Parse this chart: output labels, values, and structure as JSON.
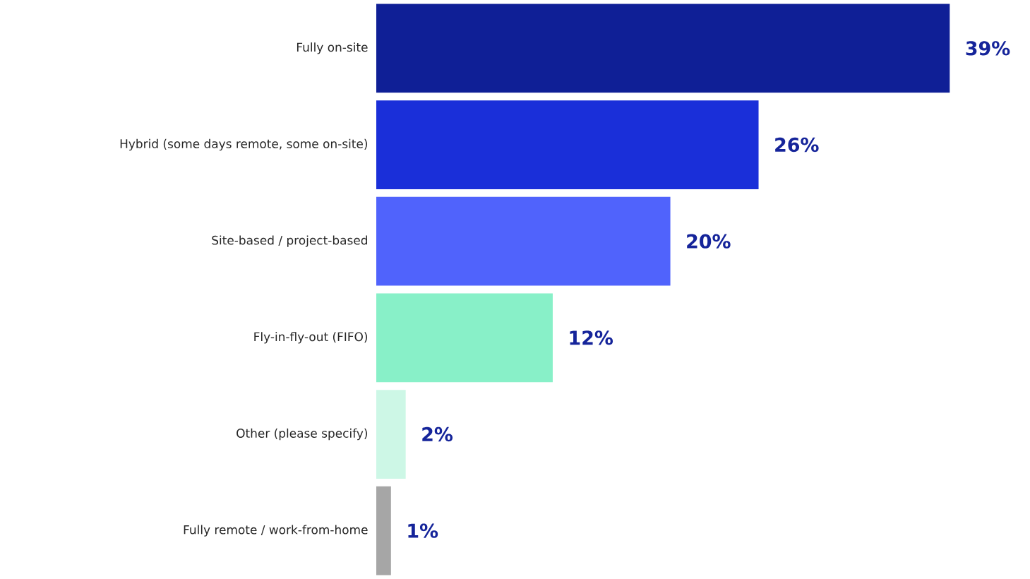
{
  "chart_data": {
    "type": "bar",
    "orientation": "horizontal",
    "categories": [
      "Fully on-site",
      "Hybrid (some days remote, some on-site)",
      "Site-based / project-based",
      "Fly-in-fly-out (FIFO)",
      "Other (please specify)",
      "Fully remote / work-from-home"
    ],
    "values": [
      39,
      26,
      20,
      12,
      2,
      1
    ],
    "colors": [
      "#0f1f96",
      "#1a2fd9",
      "#5063fc",
      "#88f0c8",
      "#cdf7e6",
      "#a6a6a6"
    ],
    "value_labels": [
      "39%",
      "26%",
      "20%",
      "12%",
      "2%",
      "1%"
    ]
  }
}
